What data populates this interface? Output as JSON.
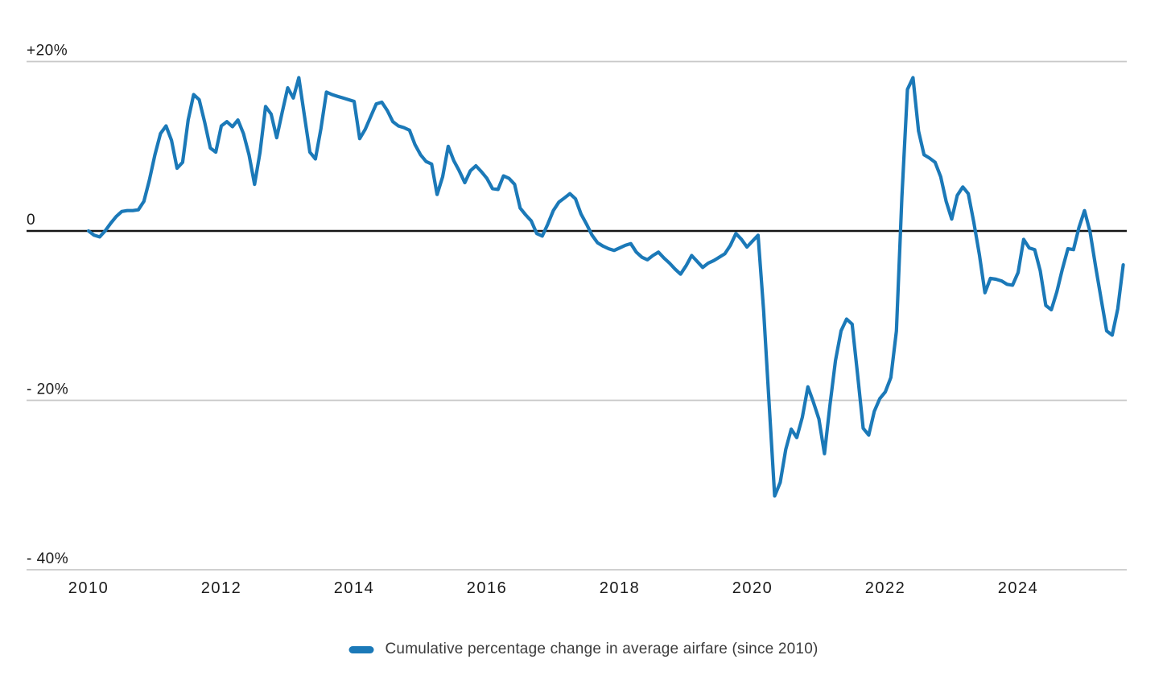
{
  "page": {
    "background": "#ffffff"
  },
  "chart_data": {
    "type": "line",
    "title": "",
    "frequency": "monthly",
    "start": "2010-01",
    "end": "2025-08",
    "unit": "percent change since 2010",
    "grid": "horizontal",
    "legend_position": "bottom-center",
    "colors": {
      "line": "#1b79b8",
      "grid": "#c9c9c9",
      "zero_line": "#151515",
      "axis_text": "#1a1a1a",
      "legend_text": "#3c3c3c",
      "background": "#ffffff"
    },
    "x_tick_labels": [
      "2010",
      "2012",
      "2014",
      "2016",
      "2018",
      "2020",
      "2022",
      "2024"
    ],
    "y_ticks": [
      {
        "label": "+20%",
        "value": 20
      },
      {
        "label": "0",
        "value": 0
      },
      {
        "label": "- 20%",
        "value": -20
      },
      {
        "label": "- 40%",
        "value": -40
      }
    ],
    "ylim": [
      -44,
      22
    ],
    "legend": {
      "label": "Cumulative percentage change in average airfare (since 2010)"
    },
    "series": [
      {
        "name": "Cumulative percentage change in average airfare (since 2010)",
        "color": "#1b79b8",
        "values": [
          0.0,
          -0.5,
          -0.7,
          0.0,
          0.9,
          1.7,
          2.3,
          2.4,
          2.4,
          2.5,
          3.5,
          6.0,
          9.0,
          11.5,
          12.4,
          10.7,
          7.4,
          8.1,
          13.1,
          16.1,
          15.5,
          12.8,
          9.8,
          9.3,
          12.4,
          12.9,
          12.3,
          13.1,
          11.5,
          9.0,
          5.5,
          9.3,
          14.7,
          13.8,
          11.0,
          14.0,
          16.9,
          15.7,
          18.1,
          13.7,
          9.3,
          8.5,
          12.1,
          16.4,
          16.1,
          15.9,
          15.7,
          15.5,
          15.3,
          10.9,
          12.0,
          13.5,
          15.0,
          15.2,
          14.2,
          12.9,
          12.4,
          12.2,
          11.9,
          10.2,
          9.0,
          8.2,
          7.9,
          4.3,
          6.4,
          10.0,
          8.3,
          7.1,
          5.7,
          7.1,
          7.7,
          7.0,
          6.2,
          5.0,
          4.9,
          6.5,
          6.2,
          5.5,
          2.7,
          1.9,
          1.2,
          -0.3,
          -0.6,
          0.8,
          2.4,
          3.4,
          3.9,
          4.4,
          3.8,
          2.0,
          0.8,
          -0.5,
          -1.4,
          -1.8,
          -2.1,
          -2.3,
          -2.0,
          -1.7,
          -1.5,
          -2.5,
          -3.1,
          -3.4,
          -2.9,
          -2.5,
          -3.2,
          -3.8,
          -4.5,
          -5.1,
          -4.1,
          -2.9,
          -3.6,
          -4.3,
          -3.8,
          -3.5,
          -3.1,
          -2.7,
          -1.7,
          -0.3,
          -1.0,
          -1.9,
          -1.2,
          -0.5,
          -9.4,
          -20.3,
          -31.3,
          -29.7,
          -25.8,
          -23.4,
          -24.4,
          -22.0,
          -18.4,
          -20.2,
          -22.2,
          -26.3,
          -20.5,
          -15.3,
          -11.8,
          -10.4,
          -11.0,
          -17.0,
          -23.3,
          -24.1,
          -21.3,
          -19.8,
          -19.0,
          -17.3,
          -11.8,
          4.0,
          16.7,
          18.1,
          11.8,
          9.0,
          8.6,
          8.1,
          6.4,
          3.5,
          1.4,
          4.2,
          5.2,
          4.4,
          1.0,
          -2.8,
          -7.3,
          -5.6,
          -5.7,
          -5.9,
          -6.3,
          -6.4,
          -4.9,
          -1.0,
          -2.0,
          -2.2,
          -4.7,
          -8.8,
          -9.3,
          -7.2,
          -4.5,
          -2.1,
          -2.2,
          0.4,
          2.4,
          -0.1,
          -4.2,
          -8.0,
          -11.8,
          -12.3,
          -9.2,
          -4.0
        ]
      }
    ]
  }
}
